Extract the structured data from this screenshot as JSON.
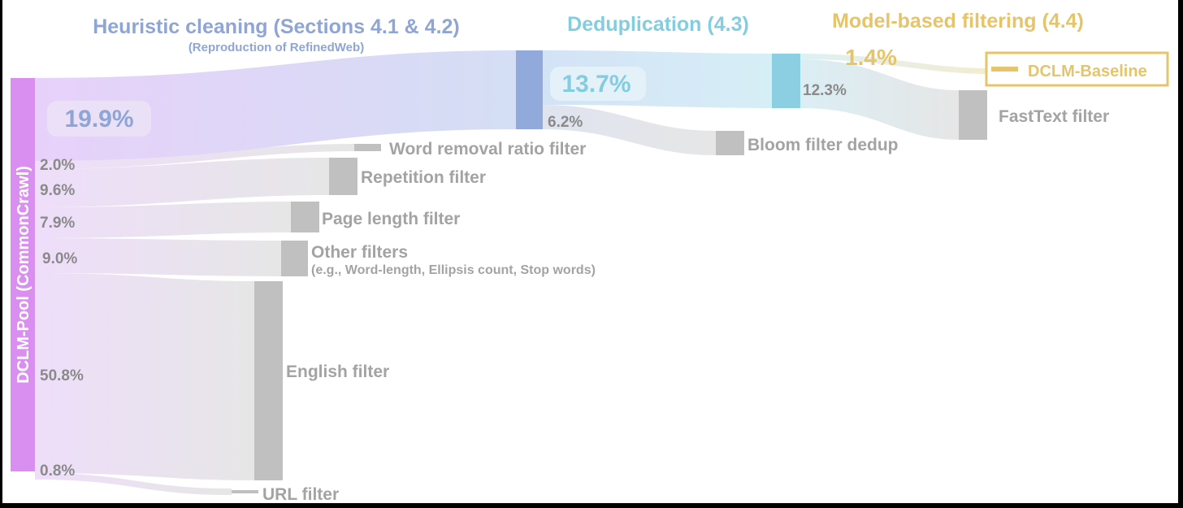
{
  "stages": {
    "heuristic": {
      "title": "Heuristic cleaning (Sections 4.1 & 4.2)",
      "subtitle": "(Reproduction of RefinedWeb)",
      "color": "#8ea5d6"
    },
    "dedup": {
      "title": "Deduplication (4.3)",
      "color": "#82cde0"
    },
    "model": {
      "title": "Model-based filtering (4.4)",
      "color": "#e6c46a"
    }
  },
  "source": {
    "label": "DCLM-Pool (CommonCrawl)",
    "color": "#d98ff0"
  },
  "heuristic_flows": {
    "kept_pct": "19.9%",
    "removed": [
      {
        "pct": "2.0%",
        "label": "Word removal ratio filter"
      },
      {
        "pct": "9.6%",
        "label": "Repetition filter"
      },
      {
        "pct": "7.9%",
        "label": "Page length filter"
      },
      {
        "pct": "9.0%",
        "label": "Other filters",
        "sublabel": "(e.g., Word-length, Ellipsis count, Stop words)"
      },
      {
        "pct": "50.8%",
        "label": "English filter"
      },
      {
        "pct": "0.8%",
        "label": "URL filter"
      }
    ]
  },
  "dedup_flows": {
    "kept_pct": "13.7%",
    "removed_pct": "6.2%",
    "removed_label": "Bloom filter dedup"
  },
  "model_flows": {
    "kept_pct": "1.4%",
    "removed_pct": "12.3%",
    "removed_label": "FastText filter",
    "output_label": "DCLM-Baseline"
  },
  "colors": {
    "removed_node": "#c0c0c0",
    "removed_flow": "#e4e4e4",
    "label_gray": "#a3a3a3",
    "pct_gray": "#8a8a8a"
  }
}
